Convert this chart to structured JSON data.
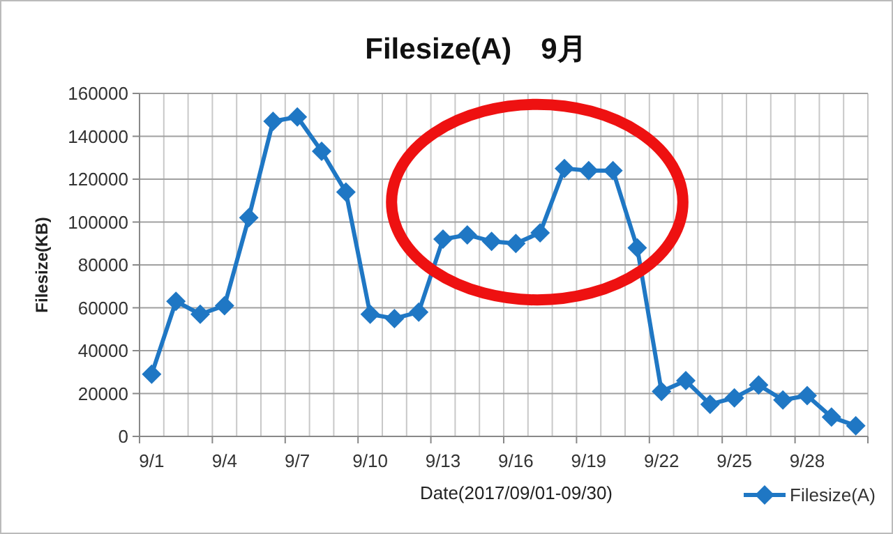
{
  "chart_data": {
    "type": "line",
    "title": "Filesize(A)　9月",
    "xlabel": "Date(2017/09/01-09/30)",
    "ylabel": "Filesize(KB)",
    "categories": [
      "9/1",
      null,
      null,
      "9/4",
      null,
      null,
      "9/7",
      null,
      null,
      "9/10",
      null,
      null,
      "9/13",
      null,
      null,
      "9/16",
      null,
      null,
      "9/19",
      null,
      null,
      "9/22",
      null,
      null,
      "9/25",
      null,
      null,
      "9/28",
      null,
      null
    ],
    "series": [
      {
        "name": "Filesize(A)",
        "color": "#1f77c4",
        "values": [
          29000,
          63000,
          57000,
          61000,
          102000,
          147000,
          149000,
          133000,
          114000,
          57000,
          55000,
          58000,
          92000,
          94000,
          91000,
          90000,
          95000,
          125000,
          124000,
          124000,
          88000,
          21000,
          26000,
          15000,
          18000,
          24000,
          17000,
          19000,
          9000,
          5000
        ]
      }
    ],
    "ylim": [
      0,
      160000
    ],
    "yticks": [
      0,
      20000,
      40000,
      60000,
      80000,
      100000,
      120000,
      140000,
      160000
    ],
    "grid": true,
    "legend": "bottom right",
    "marker": "diamond",
    "line_style": "solid"
  }
}
